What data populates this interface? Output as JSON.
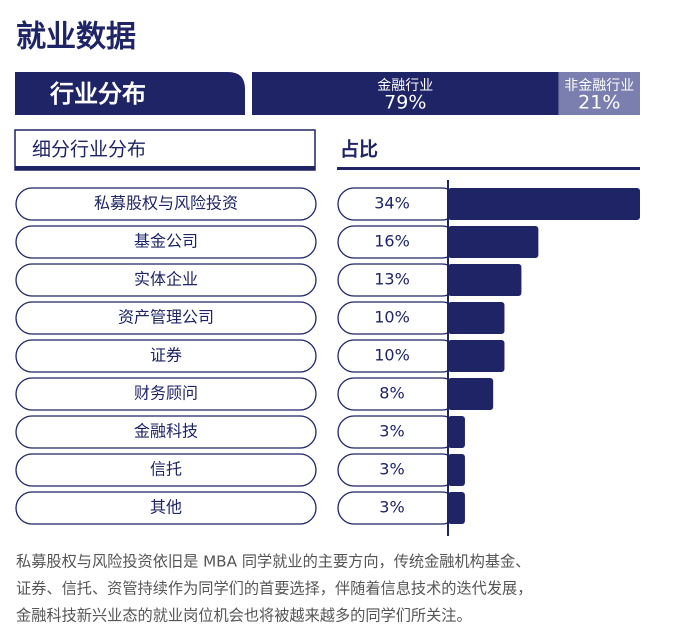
{
  "title": "就业数据",
  "overview": {
    "label": "行业分布",
    "segments": [
      {
        "name": "金融行业",
        "value": 79,
        "value_label": "79%",
        "color": "#1e2466"
      },
      {
        "name": "非金融行业",
        "value": 21,
        "value_label": "21%",
        "color": "#7b7fb0"
      }
    ]
  },
  "chart_data": {
    "type": "bar",
    "category_header": "细分行业分布",
    "value_header": "占比",
    "categories": [
      "私募股权与风险投资",
      "基金公司",
      "实体企业",
      "资产管理公司",
      "证券",
      "财务顾问",
      "金融科技",
      "信托",
      "其他"
    ],
    "values": [
      34,
      16,
      13,
      10,
      10,
      8,
      3,
      3,
      3
    ],
    "value_labels": [
      "34%",
      "16%",
      "13%",
      "10%",
      "10%",
      "8%",
      "3%",
      "3%",
      "3%"
    ],
    "color": "#1e2466"
  },
  "note": [
    "私募股权与风险投资依旧是 MBA 同学就业的主要方向，传统金融机构基金、",
    "证券、信托、资管持续作为同学们的首要选择，伴随着信息技术的迭代发展，",
    "金融科技新兴业态的就业岗位机会也将被越来越多的同学们所关注。"
  ]
}
